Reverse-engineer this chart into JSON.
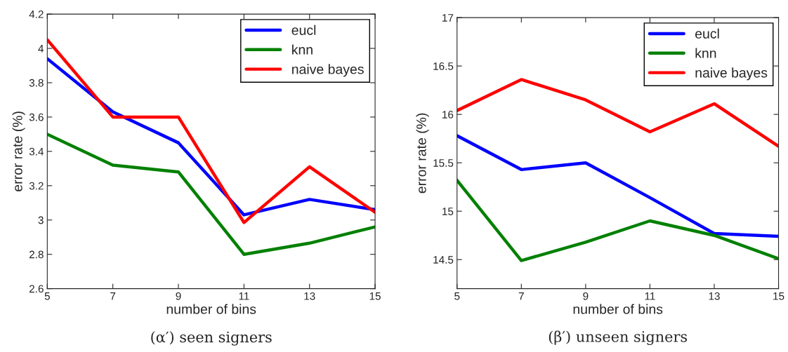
{
  "chart_data": [
    {
      "type": "line",
      "title": "(α′) seen signers",
      "xlabel": "number of bins",
      "ylabel": "error rate (%)",
      "x": [
        5,
        7,
        9,
        11,
        13,
        15
      ],
      "xlim": [
        5,
        15
      ],
      "xticks": [
        5,
        7,
        9,
        11,
        13,
        15
      ],
      "ylim": [
        2.6,
        4.2
      ],
      "yticks": [
        2.6,
        2.8,
        3,
        3.2,
        3.4,
        3.6,
        3.8,
        4,
        4.2
      ],
      "legend": "top right",
      "grid": false,
      "series": [
        {
          "name": "eucl",
          "color": "#0000ff",
          "values": [
            3.94,
            3.63,
            3.45,
            3.03,
            3.12,
            3.06
          ]
        },
        {
          "name": "knn",
          "color": "#008000",
          "values": [
            3.5,
            3.32,
            3.28,
            2.8,
            2.865,
            2.96
          ]
        },
        {
          "name": "naive bayes",
          "color": "#ff0000",
          "values": [
            4.05,
            3.6,
            3.6,
            2.985,
            3.31,
            3.045
          ]
        }
      ]
    },
    {
      "type": "line",
      "title": "(β′) unseen signers",
      "xlabel": "number of bins",
      "ylabel": "error rate (%)",
      "x": [
        5,
        7,
        9,
        11,
        13,
        15
      ],
      "xlim": [
        5,
        15
      ],
      "xticks": [
        5,
        7,
        9,
        11,
        13,
        15
      ],
      "ylim": [
        14.2,
        17
      ],
      "yticks": [
        14.5,
        15,
        15.5,
        16,
        16.5,
        17
      ],
      "legend": "top right",
      "grid": false,
      "series": [
        {
          "name": "eucl",
          "color": "#0000ff",
          "values": [
            15.78,
            15.43,
            15.5,
            15.14,
            14.77,
            14.74
          ]
        },
        {
          "name": "knn",
          "color": "#008000",
          "values": [
            15.32,
            14.49,
            14.68,
            14.9,
            14.75,
            14.51
          ]
        },
        {
          "name": "naive bayes",
          "color": "#ff0000",
          "values": [
            16.04,
            16.36,
            16.15,
            15.82,
            16.11,
            15.67
          ]
        }
      ]
    }
  ]
}
